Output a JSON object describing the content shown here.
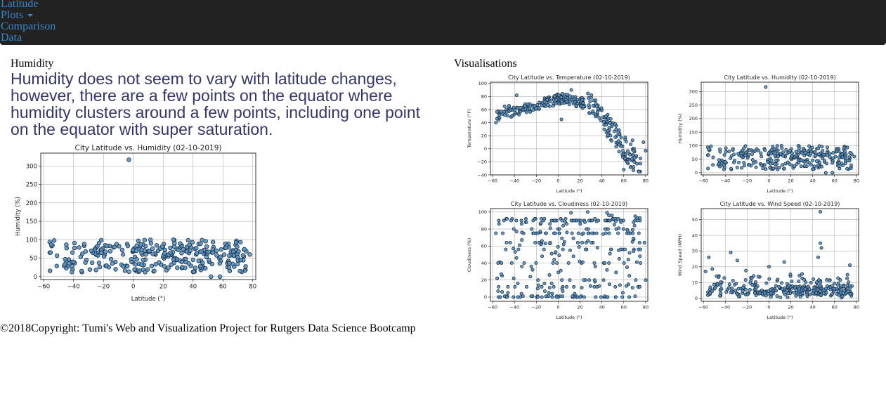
{
  "nav": {
    "items": [
      {
        "label": "Latitude"
      },
      {
        "label": "Plots",
        "has_dropdown": true
      },
      {
        "label": "Comparison"
      },
      {
        "label": "Data"
      }
    ],
    "background": "#222222",
    "link_color": "#3a86c8"
  },
  "main": {
    "heading": "Humidity",
    "description": "Humidity does not seem to vary with latitude changes, however, there are a few points on the equator where humidity clusters around a few points, including one point on the equator with super saturation."
  },
  "visualisations": {
    "heading": "Visualisations"
  },
  "footer": {
    "text": "©2018Copyright: Tumi's Web and Visualization Project for Rutgers Data Science Bootcamp"
  },
  "colors": {
    "marker_fill": "#5b95c7",
    "marker_edge": "#1a2e40",
    "grid": "#b0b0b0",
    "description_text": "#353567"
  },
  "chart_data": [
    {
      "id": "main-humidity",
      "type": "scatter",
      "title": "City Latitude vs. Humidity (02-10-2019)",
      "xlabel": "Latitude (°)",
      "ylabel": "Humidity (%)",
      "xlim": [
        -62,
        82
      ],
      "ylim": [
        -8,
        335
      ],
      "xticks": [
        -60,
        -40,
        -20,
        0,
        20,
        40,
        60,
        80
      ],
      "yticks": [
        0,
        50,
        100,
        150,
        200,
        250,
        300
      ],
      "grid": true,
      "generator": {
        "kind": "humidity",
        "seed": 11,
        "n": 300
      },
      "points": [
        [
          -3,
          317
        ],
        [
          -55,
          87
        ],
        [
          -53,
          98
        ],
        [
          -46,
          33
        ],
        [
          -40,
          40
        ],
        [
          -25,
          18
        ],
        [
          -18,
          30
        ],
        [
          52,
          0
        ],
        [
          58,
          0
        ],
        [
          72,
          45
        ],
        [
          78,
          60
        ]
      ]
    },
    {
      "id": "temperature",
      "type": "scatter",
      "title": "City Latitude vs. Temperature (02-10-2019)",
      "xlabel": "Latitude (°)",
      "ylabel": "Temperature (°F)",
      "xlim": [
        -62,
        82
      ],
      "ylim": [
        -40,
        102
      ],
      "xticks": [
        -60,
        -40,
        -20,
        0,
        20,
        40,
        60,
        80
      ],
      "yticks": [
        -40,
        -20,
        0,
        20,
        40,
        60,
        80,
        100
      ],
      "grid": true,
      "generator": {
        "kind": "temperature",
        "seed": 23,
        "n": 320
      },
      "points": [
        [
          -57,
          40
        ],
        [
          -56,
          46
        ],
        [
          -49,
          65
        ],
        [
          -45,
          66
        ],
        [
          -40,
          59
        ],
        [
          -38,
          82
        ],
        [
          12,
          90
        ],
        [
          3,
          45
        ],
        [
          60,
          -32
        ],
        [
          78,
          10
        ],
        [
          80,
          -3
        ],
        [
          68,
          13
        ]
      ]
    },
    {
      "id": "humidity-small",
      "type": "scatter",
      "title": "City Latitude vs. Humidity (02-10-2019)",
      "xlabel": "Latitude (°)",
      "ylabel": "Humidity (%)",
      "xlim": [
        -62,
        82
      ],
      "ylim": [
        -8,
        335
      ],
      "xticks": [
        -60,
        -40,
        -20,
        0,
        20,
        40,
        60,
        80
      ],
      "yticks": [
        0,
        50,
        100,
        150,
        200,
        250,
        300
      ],
      "grid": true,
      "generator": {
        "kind": "humidity",
        "seed": 11,
        "n": 300
      },
      "points": [
        [
          -3,
          317
        ],
        [
          -55,
          87
        ],
        [
          -53,
          98
        ],
        [
          -46,
          33
        ],
        [
          -40,
          40
        ],
        [
          -25,
          18
        ],
        [
          -18,
          30
        ],
        [
          52,
          0
        ],
        [
          58,
          0
        ],
        [
          72,
          45
        ],
        [
          78,
          60
        ]
      ]
    },
    {
      "id": "cloudiness",
      "type": "scatter",
      "title": "City Latitude vs. Cloudiness (02-10-2019)",
      "xlabel": "Latitude (°)",
      "ylabel": "Cloudiness (%)",
      "xlim": [
        -62,
        82
      ],
      "ylim": [
        -5,
        104
      ],
      "xticks": [
        -60,
        -40,
        -20,
        0,
        20,
        40,
        60,
        80
      ],
      "yticks": [
        0,
        20,
        40,
        60,
        80,
        100
      ],
      "grid": true,
      "generator": {
        "kind": "cloudiness",
        "seed": 37,
        "n": 320
      },
      "points": [
        [
          -57,
          75
        ],
        [
          -55,
          40
        ],
        [
          -47,
          0
        ],
        [
          -46,
          12
        ],
        [
          -46,
          5
        ],
        [
          -43,
          90
        ],
        [
          27,
          100
        ],
        [
          79,
          64
        ],
        [
          80,
          20
        ]
      ]
    },
    {
      "id": "wind-speed",
      "type": "scatter",
      "title": "City Latitude vs. Wind Speed (02-10-2019)",
      "xlabel": "Latitude (°)",
      "ylabel": "Wind Speed (MPH)",
      "xlim": [
        -62,
        82
      ],
      "ylim": [
        -2,
        57
      ],
      "xticks": [
        -60,
        -40,
        -20,
        0,
        20,
        40,
        60,
        80
      ],
      "yticks": [
        0,
        10,
        20,
        30,
        40,
        50
      ],
      "grid": true,
      "generator": {
        "kind": "wind",
        "seed": 51,
        "n": 320
      },
      "points": [
        [
          -58,
          17
        ],
        [
          -55,
          26
        ],
        [
          -48,
          14
        ],
        [
          -35,
          29
        ],
        [
          -29,
          24
        ],
        [
          47,
          55
        ],
        [
          47,
          35
        ],
        [
          48,
          32
        ],
        [
          45,
          26
        ],
        [
          0,
          20
        ],
        [
          14,
          23
        ],
        [
          74,
          21
        ]
      ]
    }
  ]
}
